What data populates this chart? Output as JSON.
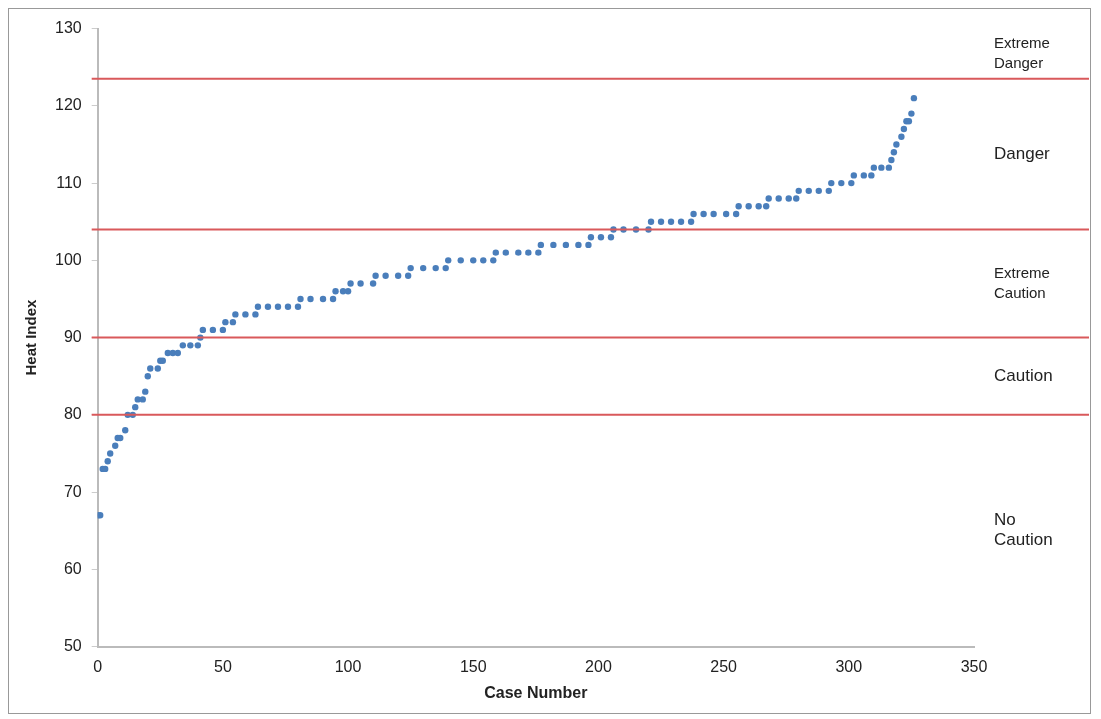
{
  "chart_data": {
    "type": "scatter",
    "xlabel": "Case Number",
    "ylabel": "Heat Index",
    "xlim": [
      0,
      350
    ],
    "xticks": [
      0,
      50,
      100,
      150,
      200,
      250,
      300,
      350
    ],
    "ylim": [
      50,
      130
    ],
    "yticks": [
      50,
      60,
      70,
      80,
      90,
      100,
      110,
      120,
      130
    ],
    "grid": false,
    "legend": false,
    "marker": "circle",
    "series": [
      {
        "color": "#4a7ebb",
        "x": [
          0,
          1,
          2,
          3,
          4,
          5,
          7,
          8,
          9,
          11,
          12,
          14,
          15,
          16,
          18,
          19,
          20,
          21,
          24,
          25,
          26,
          28,
          30,
          32,
          34,
          37,
          40,
          41,
          42,
          46,
          50,
          51,
          54,
          55,
          59,
          63,
          64,
          68,
          72,
          76,
          80,
          81,
          85,
          90,
          94,
          95,
          98,
          100,
          101,
          105,
          110,
          111,
          115,
          120,
          124,
          125,
          130,
          135,
          139,
          140,
          145,
          150,
          154,
          158,
          159,
          163,
          168,
          172,
          176,
          177,
          182,
          187,
          192,
          196,
          197,
          201,
          205,
          206,
          210,
          215,
          220,
          221,
          225,
          229,
          233,
          237,
          238,
          242,
          246,
          251,
          255,
          256,
          260,
          264,
          267,
          268,
          272,
          276,
          279,
          280,
          284,
          288,
          292,
          293,
          297,
          301,
          302,
          306,
          309,
          310,
          313,
          316,
          317,
          318,
          319,
          321,
          322,
          323,
          324,
          325,
          326
        ],
        "values": [
          67,
          67,
          73,
          73,
          74,
          75,
          76,
          77,
          77,
          78,
          80,
          80,
          81,
          82,
          82,
          83,
          85,
          86,
          86,
          87,
          87,
          88,
          88,
          88,
          89,
          89,
          89,
          90,
          91,
          91,
          91,
          92,
          92,
          93,
          93,
          93,
          94,
          94,
          94,
          94,
          94,
          95,
          95,
          95,
          95,
          96,
          96,
          96,
          97,
          97,
          97,
          98,
          98,
          98,
          98,
          99,
          99,
          99,
          99,
          100,
          100,
          100,
          100,
          100,
          101,
          101,
          101,
          101,
          101,
          102,
          102,
          102,
          102,
          102,
          103,
          103,
          103,
          104,
          104,
          104,
          104,
          105,
          105,
          105,
          105,
          105,
          106,
          106,
          106,
          106,
          106,
          107,
          107,
          107,
          107,
          108,
          108,
          108,
          108,
          109,
          109,
          109,
          109,
          110,
          110,
          110,
          111,
          111,
          111,
          112,
          112,
          112,
          113,
          114,
          115,
          116,
          117,
          118,
          118,
          119,
          121
        ]
      }
    ],
    "ref_lines": [
      {
        "axis": "y",
        "value": 123.5,
        "color": "#d9595b"
      },
      {
        "axis": "y",
        "value": 104,
        "color": "#d9595b"
      },
      {
        "axis": "y",
        "value": 90,
        "color": "#d9595b"
      },
      {
        "axis": "y",
        "value": 80,
        "color": "#d9595b"
      }
    ],
    "annotations": [
      "Extreme Danger",
      "Danger",
      "Extreme Caution",
      "Caution",
      "No Caution"
    ]
  }
}
